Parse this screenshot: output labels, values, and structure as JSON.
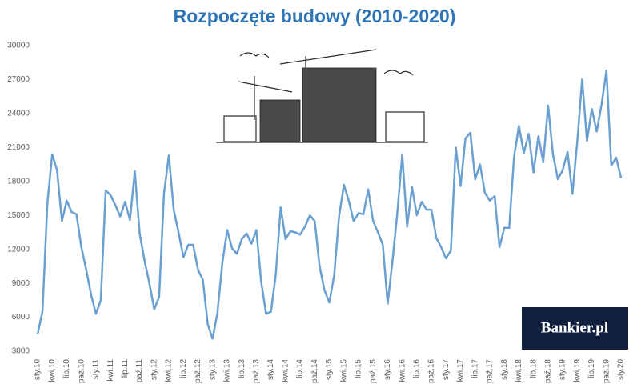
{
  "chart_data": {
    "type": "line",
    "title": "Rozpoczęte budowy (2010-2020)",
    "watermark": "Bankier.pl",
    "categories": [
      "sty.10",
      null,
      null,
      "kwi.10",
      null,
      null,
      "lip.10",
      null,
      null,
      "paź.10",
      null,
      null,
      "sty.11",
      null,
      null,
      "kwi.11",
      null,
      null,
      "lip.11",
      null,
      null,
      "paź.11",
      null,
      null,
      "sty.12",
      null,
      null,
      "kwi.12",
      null,
      null,
      "lip.12",
      null,
      null,
      "paź.12",
      null,
      null,
      "sty.13",
      null,
      null,
      "kwi.13",
      null,
      null,
      "lip.13",
      null,
      null,
      "paź.13",
      null,
      null,
      "sty.14",
      null,
      null,
      "kwi.14",
      null,
      null,
      "lip.14",
      null,
      null,
      "paź.14",
      null,
      null,
      "sty.15",
      null,
      null,
      "kwi.15",
      null,
      null,
      "lip.15",
      null,
      null,
      "paź.15",
      null,
      null,
      "sty.16",
      null,
      null,
      "kwi.16",
      null,
      null,
      "lip.16",
      null,
      null,
      "paź.16",
      null,
      null,
      "sty.17",
      null,
      null,
      "kwi.17",
      null,
      null,
      "lip.17",
      null,
      null,
      "paź.17",
      null,
      null,
      "sty.18",
      null,
      null,
      "kwi.18",
      null,
      null,
      "lip.18",
      null,
      null,
      "paź.18",
      null,
      null,
      "sty.19",
      null,
      null,
      "kwi.19",
      null,
      null,
      "lip.19",
      null,
      null,
      "paź.19",
      null,
      null,
      "sty.20"
    ],
    "values": [
      4500,
      6500,
      16000,
      20400,
      19000,
      14500,
      16300,
      15300,
      15100,
      12200,
      10200,
      8000,
      6300,
      7500,
      17200,
      16800,
      15900,
      14900,
      16200,
      14600,
      18900,
      13400,
      11000,
      9000,
      6700,
      7800,
      16900,
      20300,
      15500,
      13500,
      11300,
      12400,
      12400,
      10200,
      9300,
      5400,
      4100,
      6400,
      10800,
      13700,
      12100,
      11600,
      12900,
      13400,
      12500,
      13700,
      9100,
      6300,
      6500,
      9800,
      15700,
      12900,
      13600,
      13500,
      13300,
      14000,
      15000,
      14500,
      10500,
      8400,
      7300,
      9700,
      14900,
      17700,
      16300,
      14500,
      15200,
      15100,
      17300,
      14500,
      13500,
      12400,
      7200,
      11000,
      15300,
      20400,
      14000,
      17500,
      15000,
      16200,
      15500,
      15500,
      13000,
      12200,
      11200,
      11900,
      21000,
      17600,
      21800,
      22300,
      18200,
      19500,
      17000,
      16300,
      16700,
      12200,
      13900,
      13900,
      20200,
      22900,
      20500,
      22200,
      18800,
      22000,
      19700,
      24700,
      20400,
      18200,
      19000,
      20600,
      16900,
      21500,
      27000,
      21600,
      24400,
      22400,
      24800,
      27800,
      19400,
      20100,
      18300
    ],
    "color": "#6a9fd2",
    "ylim": [
      3000,
      30000
    ],
    "yticks": [
      3000,
      6000,
      9000,
      12000,
      15000,
      18000,
      21000,
      24000,
      27000,
      30000
    ],
    "grid": false
  }
}
